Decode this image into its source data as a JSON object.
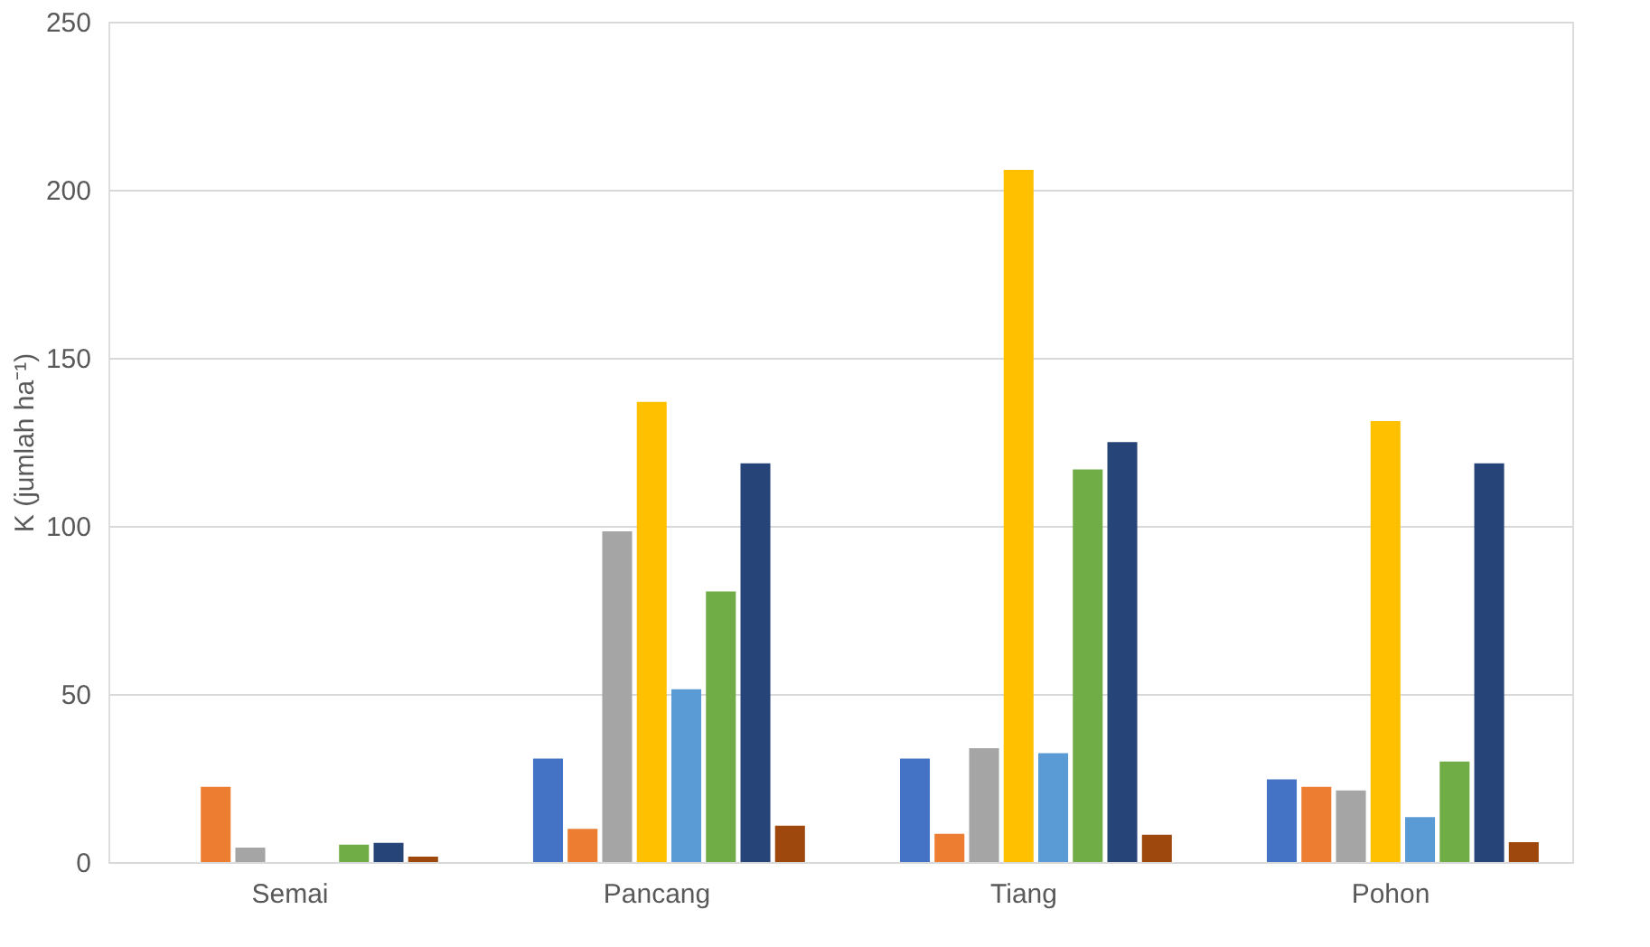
{
  "chart_data": {
    "type": "bar",
    "ylabel": "K (jumlah ha⁻¹)",
    "categories": [
      "Semai",
      "Pancang",
      "Tiang",
      "Pohon"
    ],
    "series": [
      {
        "color": "#4472c4",
        "values": [
          0,
          30.8,
          30.8,
          24.6
        ]
      },
      {
        "color": "#ed7d31",
        "values": [
          22.4,
          9.9,
          8.4,
          22.4
        ]
      },
      {
        "color": "#a5a5a5",
        "values": [
          4.3,
          98.4,
          33.9,
          21.3
        ]
      },
      {
        "color": "#ffc000",
        "values": [
          0,
          136.9,
          205.9,
          131.2
        ]
      },
      {
        "color": "#5b9bd5",
        "values": [
          0,
          51.4,
          32.4,
          13.4
        ]
      },
      {
        "color": "#70ad47",
        "values": [
          5.2,
          80.5,
          116.8,
          29.9
        ]
      },
      {
        "color": "#264478",
        "values": [
          5.7,
          118.6,
          124.9,
          118.6
        ]
      },
      {
        "color": "#9e480e",
        "values": [
          1.6,
          10.8,
          8.1,
          5.9
        ]
      }
    ],
    "ylim": [
      0,
      250
    ],
    "yticks": [
      0,
      50,
      100,
      150,
      200,
      250
    ],
    "grid": "y",
    "legend": false
  }
}
